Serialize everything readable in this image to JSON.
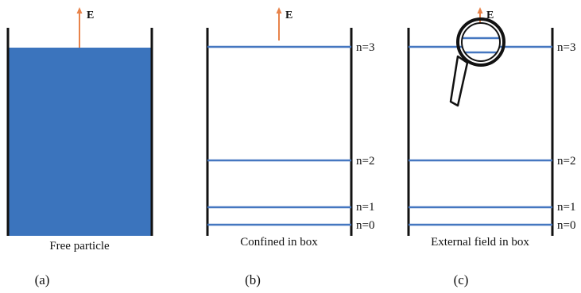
{
  "colors": {
    "wall": "#111111",
    "fill": "#3b74bd",
    "level": "#4577c0",
    "arrow": "#e8834a",
    "text": "#111111",
    "magnifier_frame": "#111111",
    "magnifier_glass": "#ffffff"
  },
  "field_symbol": "E",
  "panels": [
    {
      "id": "a",
      "caption": "Free particle",
      "label": "(a)",
      "filled": true,
      "levels": []
    },
    {
      "id": "b",
      "caption": "Confined in box",
      "label": "(b)",
      "filled": false,
      "levels": [
        "n=3",
        "n=2",
        "n=1",
        "n=0"
      ]
    },
    {
      "id": "c",
      "caption": "External field in box",
      "label": "(c)",
      "filled": false,
      "levels": [
        "n=3",
        "n=2",
        "n=1",
        "n=0"
      ],
      "icon": "magnifying-glass-icon"
    }
  ]
}
